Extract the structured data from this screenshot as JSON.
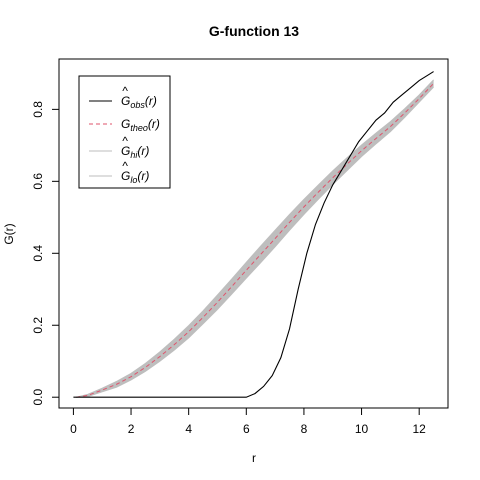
{
  "chart_data": {
    "type": "line",
    "title": "G-function 13",
    "xlabel": "r",
    "ylabel": "G(r)",
    "xlim": [
      -0.5,
      13.0
    ],
    "ylim": [
      -0.03,
      0.94
    ],
    "x_ticks": [
      0,
      2,
      4,
      6,
      8,
      10,
      12
    ],
    "y_ticks": [
      0.0,
      0.2,
      0.4,
      0.6,
      0.8
    ],
    "y_tick_labels": [
      "0.0",
      "0.2",
      "0.4",
      "0.6",
      "0.8"
    ],
    "legend_position": "top-left",
    "legend": [
      {
        "name": "Ĝobs(r)",
        "base": "G",
        "hat": "^",
        "sub": "obs",
        "arg": "(r)",
        "style": "solid",
        "color": "#000000"
      },
      {
        "name": "Gtheo(r)",
        "base": "G",
        "hat": "",
        "sub": "theo",
        "arg": "(r)",
        "style": "dashed",
        "color": "#DF536B"
      },
      {
        "name": "Ĝhi(r)",
        "base": "G",
        "hat": "^",
        "sub": "hi",
        "arg": "(r)",
        "style": "solid",
        "color": "#BEBEBE"
      },
      {
        "name": "Ĝlo(r)",
        "base": "G",
        "hat": "^",
        "sub": "lo",
        "arg": "(r)",
        "style": "solid",
        "color": "#BEBEBE"
      }
    ],
    "series": [
      {
        "name": "Ĝobs(r)",
        "color": "#000000",
        "x": [
          0,
          0.5,
          1,
          2,
          3,
          4,
          5,
          6.0,
          6.3,
          6.6,
          6.9,
          7.2,
          7.5,
          7.8,
          8.1,
          8.4,
          8.7,
          9.0,
          9.3,
          9.6,
          9.9,
          10.2,
          10.5,
          10.8,
          11.1,
          11.4,
          11.7,
          12.0,
          12.3,
          12.5
        ],
        "y": [
          0,
          0,
          0,
          0,
          0,
          0,
          0,
          0.0,
          0.01,
          0.03,
          0.06,
          0.11,
          0.19,
          0.3,
          0.4,
          0.48,
          0.54,
          0.59,
          0.63,
          0.67,
          0.71,
          0.74,
          0.77,
          0.79,
          0.82,
          0.84,
          0.86,
          0.88,
          0.895,
          0.905
        ]
      },
      {
        "name": "Gtheo(r)",
        "color": "#DF536B",
        "x": [
          0.1,
          0.5,
          1,
          1.5,
          2,
          2.5,
          3,
          3.5,
          4,
          4.5,
          5,
          5.5,
          6,
          6.5,
          7,
          7.5,
          8,
          8.5,
          9,
          9.5,
          10,
          10.5,
          11,
          11.5,
          12,
          12.5
        ],
        "y": [
          0.0,
          0.005,
          0.02,
          0.036,
          0.057,
          0.083,
          0.113,
          0.146,
          0.182,
          0.222,
          0.264,
          0.308,
          0.353,
          0.397,
          0.441,
          0.486,
          0.529,
          0.57,
          0.61,
          0.648,
          0.685,
          0.719,
          0.752,
          0.79,
          0.83,
          0.872
        ]
      },
      {
        "name": "Ĝhi(r)",
        "color": "#BEBEBE",
        "x": [
          0.1,
          0.5,
          1,
          1.5,
          2,
          2.5,
          3,
          3.5,
          4,
          4.5,
          5,
          5.5,
          6,
          6.5,
          7,
          7.5,
          8,
          8.5,
          9,
          9.5,
          10,
          10.5,
          11,
          11.5,
          12,
          12.5
        ],
        "y": [
          0.0,
          0.008,
          0.025,
          0.044,
          0.066,
          0.094,
          0.126,
          0.161,
          0.199,
          0.24,
          0.284,
          0.329,
          0.375,
          0.42,
          0.464,
          0.508,
          0.55,
          0.59,
          0.629,
          0.666,
          0.701,
          0.734,
          0.766,
          0.802,
          0.84,
          0.882
        ]
      },
      {
        "name": "Ĝlo(r)",
        "color": "#BEBEBE",
        "x": [
          0.1,
          0.5,
          1,
          1.5,
          2,
          2.5,
          3,
          3.5,
          4,
          4.5,
          5,
          5.5,
          6,
          6.5,
          7,
          7.5,
          8,
          8.5,
          9,
          9.5,
          10,
          10.5,
          11,
          11.5,
          12,
          12.5
        ],
        "y": [
          0.0,
          0.002,
          0.015,
          0.028,
          0.048,
          0.072,
          0.1,
          0.131,
          0.165,
          0.204,
          0.244,
          0.287,
          0.331,
          0.374,
          0.418,
          0.464,
          0.508,
          0.55,
          0.591,
          0.63,
          0.669,
          0.704,
          0.738,
          0.778,
          0.82,
          0.862
        ]
      }
    ]
  }
}
